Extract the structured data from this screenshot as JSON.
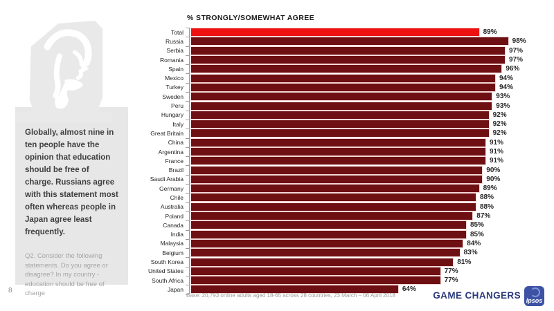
{
  "page_number": "8",
  "sidebar": {
    "summary": "Globally, almost nine in ten people have the opinion that education should be free of charge. Russians agree with this statement most often whereas people in Japan agree least frequently.",
    "question": "Q2. Consider the following statements. Do you agree or disagree? In my country - education should be free of charge"
  },
  "chart_data": {
    "type": "bar",
    "orientation": "horizontal",
    "title": "% STRONGLY/SOMEWHAT AGREE",
    "unit": "%",
    "xlim": [
      0,
      100
    ],
    "grid": false,
    "legend": "none",
    "highlight_index": 0,
    "categories": [
      "Total",
      "Russia",
      "Serbia",
      "Romania",
      "Spain",
      "Mexico",
      "Turkey",
      "Sweden",
      "Peru",
      "Hungary",
      "Italy",
      "Great Britain",
      "China",
      "Argentina",
      "France",
      "Brazil",
      "Saudi Arabia",
      "Germany",
      "Chile",
      "Australia",
      "Poland",
      "Canada",
      "India",
      "Malaysia",
      "Belgium",
      "South Korea",
      "United States",
      "South Africa",
      "Japan"
    ],
    "values": [
      89,
      98,
      97,
      97,
      96,
      94,
      94,
      93,
      93,
      92,
      92,
      92,
      91,
      91,
      91,
      90,
      90,
      89,
      88,
      88,
      87,
      85,
      85,
      84,
      83,
      81,
      77,
      77,
      64
    ],
    "colors": {
      "highlight_bar": "#ee1111",
      "default_bar": "#6e1013"
    }
  },
  "footer": {
    "base_note": "Base: 20,793 online adults aged 18-65 across 28 countries, 23 March – 06 April 2018",
    "brand": "GAME CHANGERS",
    "logo_text": "Ipsos"
  },
  "colors": {
    "brand_navy": "#2b3a7a",
    "logo_blue": "#3d52a5",
    "sidebar_gray": "#e7e7e7",
    "axis_gray": "#9a9a9a"
  }
}
